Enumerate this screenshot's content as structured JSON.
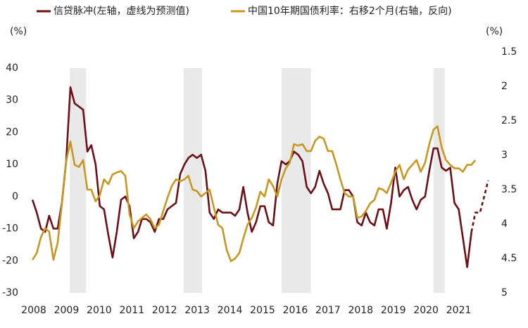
{
  "chart_data": {
    "type": "line",
    "series": [
      {
        "name": "信贷脉冲(左轴，虚线为预测值)",
        "color": "#6d0f14",
        "axis": "y",
        "values": [
          -1,
          -5,
          -10,
          -11,
          -6,
          -10,
          -10,
          -2,
          11,
          34,
          29,
          28,
          27,
          14,
          16,
          10,
          -3,
          -4,
          -12,
          -19,
          -11,
          -1,
          0,
          -3,
          -13,
          -11,
          -7,
          -7,
          -8,
          -11,
          -7,
          -7,
          -4,
          -3,
          -2,
          7,
          10,
          12,
          13,
          12,
          13,
          8,
          -5,
          -7,
          -4,
          -5,
          -5,
          -5,
          -6,
          -4,
          3,
          -5,
          -11,
          -8,
          -3,
          -3,
          -8,
          -9,
          4,
          11,
          10,
          11,
          14,
          13,
          11,
          3,
          1,
          3,
          8,
          4,
          1,
          -4,
          -4,
          -4,
          2,
          2,
          0,
          -8,
          -9,
          -5,
          -8,
          -9,
          -4,
          -4,
          -10,
          -2,
          9,
          0,
          2,
          3,
          -1,
          -4,
          -1,
          0,
          8,
          15,
          15,
          9,
          8,
          9,
          -2,
          -4,
          -13,
          -22,
          -11,
          null,
          null,
          null,
          null
        ],
        "forecast": {
          "x": [
            2021.39,
            2021.51,
            2021.65,
            2021.78,
            2021.9
          ],
          "values": [
            -11,
            -5,
            -5,
            0,
            5
          ]
        }
      },
      {
        "name": "中国10年期国债利率：右移2个月(右轴，反向)",
        "color": "#c9971f",
        "axis": "y2",
        "values": [
          4.52,
          4.42,
          4.19,
          4.06,
          4.11,
          4.52,
          4.27,
          3.71,
          3.09,
          2.8,
          3.14,
          3.17,
          3.07,
          3.5,
          3.5,
          3.67,
          3.58,
          3.35,
          3.42,
          3.28,
          3.25,
          3.23,
          3.3,
          3.86,
          4.06,
          3.96,
          3.91,
          3.86,
          3.93,
          4.06,
          4.01,
          3.81,
          3.62,
          3.45,
          3.35,
          3.38,
          3.35,
          3.3,
          3.5,
          3.52,
          3.6,
          3.55,
          3.5,
          3.76,
          4.01,
          4.06,
          4.37,
          4.54,
          4.5,
          4.42,
          4.21,
          4.01,
          3.91,
          3.76,
          3.53,
          3.6,
          3.35,
          3.45,
          3.6,
          3.35,
          3.19,
          3.11,
          2.84,
          2.86,
          2.84,
          2.94,
          2.94,
          2.79,
          2.73,
          2.76,
          2.94,
          2.94,
          3.14,
          3.35,
          3.55,
          3.6,
          3.6,
          3.91,
          3.89,
          3.81,
          3.7,
          3.65,
          3.48,
          3.5,
          3.55,
          3.4,
          3.24,
          3.14,
          3.35,
          3.21,
          3.14,
          3.07,
          3.24,
          3.11,
          2.84,
          2.63,
          2.58,
          2.89,
          3.07,
          3.14,
          3.19,
          3.19,
          3.24,
          3.14,
          3.14,
          3.07,
          null,
          null,
          null
        ]
      }
    ],
    "x": [
      2007.96,
      2008.09,
      2008.22,
      2008.35,
      2008.47,
      2008.6,
      2008.73,
      2008.86,
      2008.99,
      2009.12,
      2009.25,
      2009.38,
      2009.51,
      2009.64,
      2009.76,
      2009.89,
      2010.02,
      2010.15,
      2010.28,
      2010.41,
      2010.54,
      2010.67,
      2010.8,
      2010.93,
      2011.06,
      2011.19,
      2011.31,
      2011.44,
      2011.57,
      2011.7,
      2011.83,
      2011.96,
      2012.09,
      2012.22,
      2012.35,
      2012.48,
      2012.61,
      2012.73,
      2012.86,
      2012.99,
      2013.12,
      2013.25,
      2013.38,
      2013.51,
      2013.64,
      2013.77,
      2013.9,
      2014.03,
      2014.16,
      2014.29,
      2014.41,
      2014.54,
      2014.67,
      2014.8,
      2014.93,
      2015.06,
      2015.19,
      2015.32,
      2015.45,
      2015.58,
      2015.71,
      2015.83,
      2015.96,
      2016.09,
      2016.22,
      2016.35,
      2016.48,
      2016.61,
      2016.74,
      2016.87,
      2017.0,
      2017.13,
      2017.26,
      2017.38,
      2017.51,
      2017.64,
      2017.77,
      2017.9,
      2018.03,
      2018.16,
      2018.29,
      2018.42,
      2018.55,
      2018.68,
      2018.8,
      2018.93,
      2019.06,
      2019.19,
      2019.32,
      2019.45,
      2019.58,
      2019.71,
      2019.84,
      2019.97,
      2020.1,
      2020.23,
      2020.35,
      2020.48,
      2020.61,
      2020.74,
      2020.87,
      2021.0,
      2021.13,
      2021.26,
      2021.39,
      2021.51,
      2021.65,
      2021.78,
      2021.9
    ],
    "xlim": [
      2008,
      2022
    ],
    "xticks": [
      2008,
      2009,
      2010,
      2011,
      2012,
      2013,
      2014,
      2015,
      2016,
      2017,
      2018,
      2019,
      2020,
      2021
    ],
    "ylim": [
      -30,
      45
    ],
    "yticks": [
      -30,
      -20,
      -10,
      0,
      10,
      20,
      30,
      40
    ],
    "y_unit": "(%)",
    "y2lim": [
      5,
      1.5
    ],
    "y2ticks": [
      1.5,
      2,
      2.5,
      3,
      3.5,
      4,
      4.5,
      5
    ],
    "y2_unit": "(%)",
    "shaded": [
      [
        2009.1,
        2009.6
      ],
      [
        2012.58,
        2013.15
      ],
      [
        2015.58,
        2016.48
      ],
      [
        2020.23,
        2020.57
      ]
    ],
    "shade_color": "#e9e9e9",
    "grid": false
  }
}
